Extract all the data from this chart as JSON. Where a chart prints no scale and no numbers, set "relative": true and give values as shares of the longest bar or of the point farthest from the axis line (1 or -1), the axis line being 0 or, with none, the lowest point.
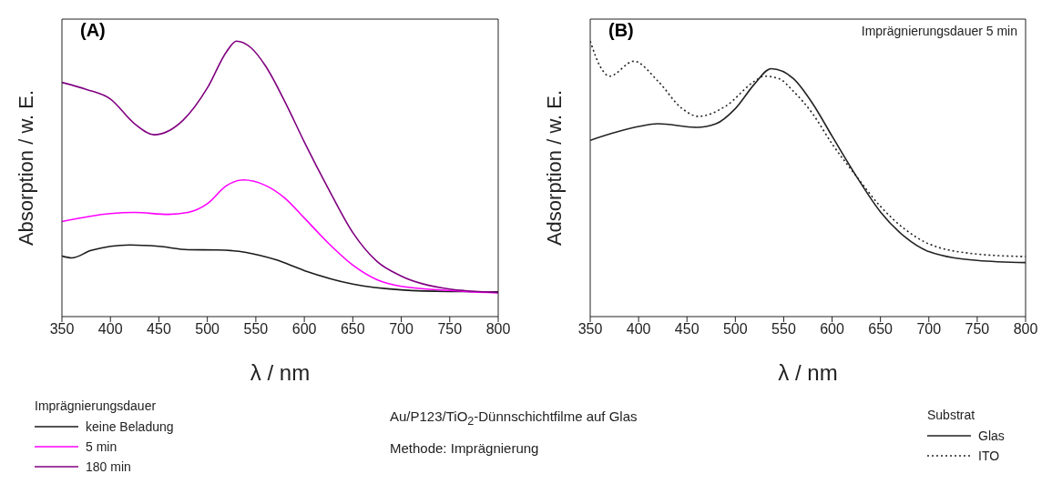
{
  "chart_data": [
    {
      "type": "line",
      "title": "(A)",
      "xlabel": "λ / nm",
      "ylabel": "Absorption / w. E.",
      "relative": true,
      "xlim": [
        350,
        800
      ],
      "xticks": [
        350,
        400,
        450,
        500,
        550,
        600,
        650,
        700,
        750,
        800
      ],
      "legend": "bottom left",
      "legend_title": "Imprägnierungsdauer",
      "annotations": [
        "Au/P123/TiO$_{2}$-Dünnschichtfilme auf Glas",
        "Methode: Imprägnierung"
      ],
      "series": [
        {
          "name": "keine Beladung",
          "color": "#1a1a1a",
          "x": [
            350,
            360,
            380,
            420,
            450,
            480,
            510,
            540,
            570,
            600,
            650,
            700,
            750,
            800
          ],
          "values": [
            0.22,
            0.213,
            0.24,
            0.26,
            0.255,
            0.243,
            0.242,
            0.233,
            0.207,
            0.167,
            0.118,
            0.097,
            0.091,
            0.09
          ]
        },
        {
          "name": "5 min",
          "color": "#ff00ff",
          "x": [
            350,
            400,
            425,
            460,
            480,
            500,
            520,
            537,
            560,
            580,
            600,
            625,
            650,
            675,
            700,
            750,
            800
          ],
          "values": [
            0.345,
            0.374,
            0.378,
            0.371,
            0.378,
            0.41,
            0.476,
            0.496,
            0.476,
            0.43,
            0.358,
            0.266,
            0.187,
            0.134,
            0.11,
            0.095,
            0.086
          ]
        },
        {
          "name": "180 min",
          "color": "#800080",
          "x": [
            350,
            375,
            400,
            425,
            445,
            475,
            500,
            520,
            530,
            545,
            560,
            580,
            600,
            625,
            650,
            675,
            700,
            750,
            800
          ],
          "values": [
            0.85,
            0.825,
            0.79,
            0.7,
            0.66,
            0.713,
            0.83,
            0.963,
            1,
            0.976,
            0.91,
            0.78,
            0.634,
            0.463,
            0.305,
            0.2,
            0.147,
            0.1,
            0.088
          ]
        }
      ]
    },
    {
      "type": "line",
      "title": "(B)",
      "subtitle": "Imprägnierungsdauer 5 min",
      "xlabel": "λ / nm",
      "ylabel": "Adsorption / w. E.",
      "relative": true,
      "xlim": [
        350,
        800
      ],
      "xticks": [
        350,
        400,
        450,
        500,
        550,
        600,
        650,
        700,
        750,
        800
      ],
      "legend": "bottom right",
      "legend_title": "Substrat",
      "series": [
        {
          "name": "Glas",
          "color": "#222222",
          "line_style": "solid",
          "x": [
            350,
            400,
            420,
            460,
            480,
            500,
            520,
            537,
            560,
            580,
            600,
            625,
            650,
            675,
            700,
            750,
            800
          ],
          "values": [
            0.64,
            0.69,
            0.7,
            0.687,
            0.7,
            0.755,
            0.845,
            0.9,
            0.864,
            0.773,
            0.655,
            0.51,
            0.38,
            0.29,
            0.236,
            0.204,
            0.196
          ]
        },
        {
          "name": "ITO",
          "color": "#222222",
          "line_style": "dotted",
          "x": [
            350,
            360,
            370,
            395,
            420,
            445,
            462,
            490,
            520,
            530,
            545,
            560,
            580,
            600,
            625,
            650,
            675,
            700,
            750,
            800
          ],
          "values": [
            1,
            0.91,
            0.873,
            0.927,
            0.855,
            0.755,
            0.727,
            0.764,
            0.855,
            0.873,
            0.864,
            0.818,
            0.736,
            0.627,
            0.51,
            0.4,
            0.318,
            0.264,
            0.227,
            0.218
          ]
        }
      ]
    }
  ]
}
